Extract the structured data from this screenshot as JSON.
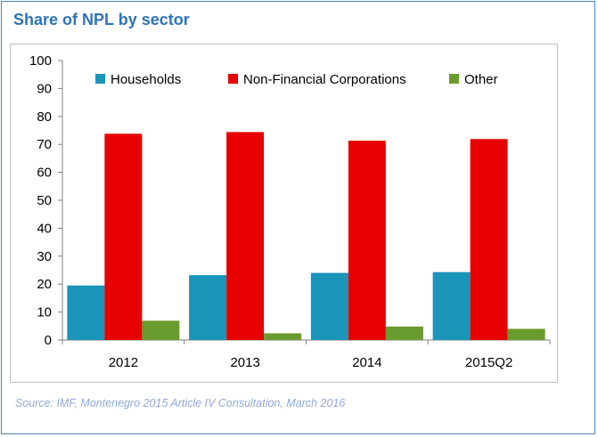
{
  "title": "Share of NPL by sector",
  "source": "Source: IMF, Montenegro 2015 Article IV Consultation, March 2016",
  "chart_data": {
    "type": "bar",
    "categories": [
      "2012",
      "2013",
      "2014",
      "2015Q2"
    ],
    "series": [
      {
        "name": "Households",
        "color": "#1a94b8",
        "values": [
          19.5,
          23.2,
          24,
          24.3
        ]
      },
      {
        "name": "Non-Financial Corporations",
        "color": "#e60000",
        "values": [
          73.8,
          74.4,
          71.3,
          71.9
        ]
      },
      {
        "name": "Other",
        "color": "#6a9b2e",
        "values": [
          6.9,
          2.4,
          4.8,
          4
        ]
      }
    ],
    "ylim": [
      0,
      100
    ],
    "yticks": [
      "0",
      "10",
      "20",
      "30",
      "40",
      "50",
      "60",
      "70",
      "80",
      "90",
      "100"
    ],
    "grid": false,
    "legend_position": "top"
  }
}
